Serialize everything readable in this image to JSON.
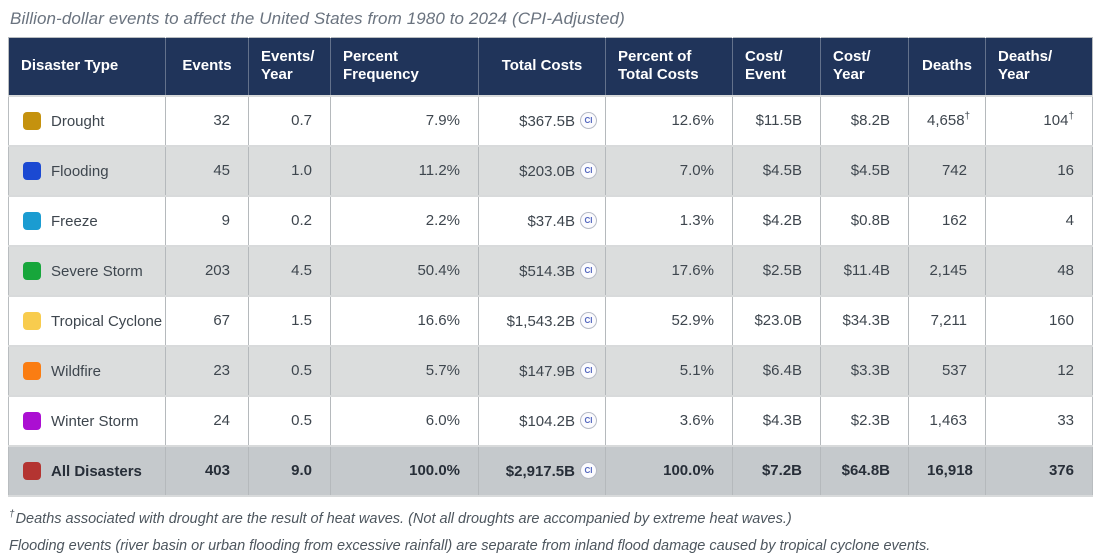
{
  "chart_data": {
    "type": "table",
    "title": "Billion-dollar events to affect the United States from 1980 to 2024 (CPI-Adjusted)",
    "ci_badge_label": "CI",
    "columns": [
      {
        "id": "disaster_type",
        "lines": [
          "Disaster Type"
        ]
      },
      {
        "id": "events",
        "lines": [
          "Events"
        ]
      },
      {
        "id": "events_per_year",
        "lines": [
          "Events/",
          "Year"
        ]
      },
      {
        "id": "percent_frequency",
        "lines": [
          "Percent",
          "Frequency"
        ]
      },
      {
        "id": "total_costs",
        "lines": [
          "Total Costs"
        ]
      },
      {
        "id": "percent_of_total_costs",
        "lines": [
          "Percent of",
          "Total Costs"
        ]
      },
      {
        "id": "cost_per_event",
        "lines": [
          "Cost/",
          "Event"
        ]
      },
      {
        "id": "cost_per_year",
        "lines": [
          "Cost/",
          "Year"
        ]
      },
      {
        "id": "deaths",
        "lines": [
          "Deaths"
        ]
      },
      {
        "id": "deaths_per_year",
        "lines": [
          "Deaths/",
          "Year"
        ]
      }
    ],
    "rows": [
      {
        "label": "Drought",
        "swatch_color": "#c5920e",
        "is_total": false,
        "values": {
          "events": "32",
          "events_per_year": "0.7",
          "percent_frequency": "7.9%",
          "total_costs": "$367.5B",
          "percent_of_total_costs": "12.6%",
          "cost_per_event": "$11.5B",
          "cost_per_year": "$8.2B",
          "deaths": "4,658",
          "deaths_per_year": "104"
        },
        "sups": {
          "deaths": "†",
          "deaths_per_year": "†"
        }
      },
      {
        "label": "Flooding",
        "swatch_color": "#1b49d2",
        "is_total": false,
        "values": {
          "events": "45",
          "events_per_year": "1.0",
          "percent_frequency": "11.2%",
          "total_costs": "$203.0B",
          "percent_of_total_costs": "7.0%",
          "cost_per_event": "$4.5B",
          "cost_per_year": "$4.5B",
          "deaths": "742",
          "deaths_per_year": "16"
        }
      },
      {
        "label": "Freeze",
        "swatch_color": "#1b9cd1",
        "is_total": false,
        "values": {
          "events": "9",
          "events_per_year": "0.2",
          "percent_frequency": "2.2%",
          "total_costs": "$37.4B",
          "percent_of_total_costs": "1.3%",
          "cost_per_event": "$4.2B",
          "cost_per_year": "$0.8B",
          "deaths": "162",
          "deaths_per_year": "4"
        }
      },
      {
        "label": "Severe Storm",
        "swatch_color": "#17a63b",
        "is_total": false,
        "values": {
          "events": "203",
          "events_per_year": "4.5",
          "percent_frequency": "50.4%",
          "total_costs": "$514.3B",
          "percent_of_total_costs": "17.6%",
          "cost_per_event": "$2.5B",
          "cost_per_year": "$11.4B",
          "deaths": "2,145",
          "deaths_per_year": "48"
        }
      },
      {
        "label": "Tropical Cyclone",
        "swatch_color": "#f8cc4e",
        "is_total": false,
        "values": {
          "events": "67",
          "events_per_year": "1.5",
          "percent_frequency": "16.6%",
          "total_costs": "$1,543.2B",
          "percent_of_total_costs": "52.9%",
          "cost_per_event": "$23.0B",
          "cost_per_year": "$34.3B",
          "deaths": "7,211",
          "deaths_per_year": "160"
        }
      },
      {
        "label": "Wildfire",
        "swatch_color": "#fa7d12",
        "is_total": false,
        "values": {
          "events": "23",
          "events_per_year": "0.5",
          "percent_frequency": "5.7%",
          "total_costs": "$147.9B",
          "percent_of_total_costs": "5.1%",
          "cost_per_event": "$6.4B",
          "cost_per_year": "$3.3B",
          "deaths": "537",
          "deaths_per_year": "12"
        }
      },
      {
        "label": "Winter Storm",
        "swatch_color": "#ab0fd2",
        "is_total": false,
        "values": {
          "events": "24",
          "events_per_year": "0.5",
          "percent_frequency": "6.0%",
          "total_costs": "$104.2B",
          "percent_of_total_costs": "3.6%",
          "cost_per_event": "$4.3B",
          "cost_per_year": "$2.3B",
          "deaths": "1,463",
          "deaths_per_year": "33"
        }
      },
      {
        "label": "All Disasters",
        "swatch_color": "#b43431",
        "is_total": true,
        "values": {
          "events": "403",
          "events_per_year": "9.0",
          "percent_frequency": "100.0%",
          "total_costs": "$2,917.5B",
          "percent_of_total_costs": "100.0%",
          "cost_per_event": "$7.2B",
          "cost_per_year": "$64.8B",
          "deaths": "16,918",
          "deaths_per_year": "376"
        }
      }
    ]
  },
  "footnotes": [
    {
      "marker": "†",
      "text": "Deaths associated with drought are the result of heat waves. (Not all droughts are accompanied by extreme heat waves.)"
    },
    {
      "marker": "",
      "text": "Flooding events (river basin or urban flooding from excessive rainfall) are separate from inland flood damage caused by tropical cyclone events."
    }
  ]
}
